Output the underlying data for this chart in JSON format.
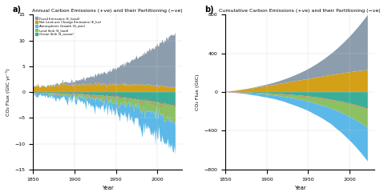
{
  "title_a": "Annual Carbon Emissions (+ve) and their Partitioning (−ve)",
  "title_b": "Cumulative Carbon Emissions (+ve) and their Partitioning (−ve)",
  "ylabel_a": "CO₂ Flux (GtC yr⁻¹)",
  "ylabel_b": "CO₂ Flux (GtC)",
  "xlabel": "Year",
  "ylim_a": [
    -15,
    15
  ],
  "ylim_b": [
    -800,
    800
  ],
  "yticks_a": [
    -15,
    -10,
    -5,
    0,
    5,
    10,
    15
  ],
  "yticks_b": [
    -800,
    -400,
    0,
    400,
    800
  ],
  "xlim": [
    1850,
    2030
  ],
  "xticks": [
    1850,
    1900,
    1950,
    2000
  ],
  "colors": {
    "fossil": "#8C9DAD",
    "luc": "#D4A017",
    "atm": "#5BB8E8",
    "land": "#8DC063",
    "ocean": "#3BAE9A"
  },
  "legend_labels": [
    "Fossil Emissions (E_fossil)",
    "Net Land-use Change Emissions (E_luc)",
    "Atmospheric Growth (G_atm)",
    "Land Sink (S_land)",
    "Ocean Sink (S_ocean)"
  ],
  "start_year": 1850,
  "end_year": 2022,
  "background_color": "#ffffff"
}
